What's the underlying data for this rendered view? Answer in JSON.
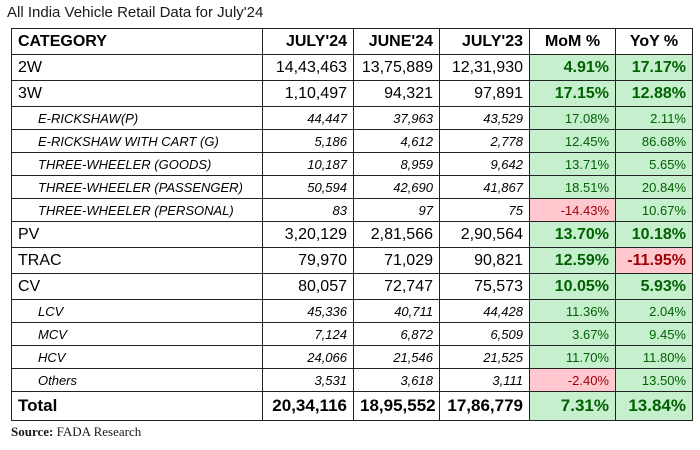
{
  "title": "All India Vehicle Retail Data for July'24",
  "headers": [
    "CATEGORY",
    "JULY'24",
    "JUNE'24",
    "JULY'23",
    "MoM %",
    "YoY %"
  ],
  "rows": [
    {
      "level": "main",
      "cat": "2W",
      "jul24": "14,43,463",
      "jun24": "13,75,889",
      "jul23": "12,31,930",
      "mom": "4.91%",
      "yoy": "17.17%",
      "mom_sign": "pos",
      "yoy_sign": "pos"
    },
    {
      "level": "main",
      "cat": "3W",
      "jul24": "1,10,497",
      "jun24": "94,321",
      "jul23": "97,891",
      "mom": "17.15%",
      "yoy": "12.88%",
      "mom_sign": "pos",
      "yoy_sign": "pos"
    },
    {
      "level": "sub",
      "cat": "E-RICKSHAW(P)",
      "jul24": "44,447",
      "jun24": "37,963",
      "jul23": "43,529",
      "mom": "17.08%",
      "yoy": "2.11%",
      "mom_sign": "pos",
      "yoy_sign": "pos"
    },
    {
      "level": "sub",
      "cat": "E-RICKSHAW WITH CART (G)",
      "jul24": "5,186",
      "jun24": "4,612",
      "jul23": "2,778",
      "mom": "12.45%",
      "yoy": "86.68%",
      "mom_sign": "pos",
      "yoy_sign": "pos"
    },
    {
      "level": "sub",
      "cat": "THREE-WHEELER (GOODS)",
      "jul24": "10,187",
      "jun24": "8,959",
      "jul23": "9,642",
      "mom": "13.71%",
      "yoy": "5.65%",
      "mom_sign": "pos",
      "yoy_sign": "pos"
    },
    {
      "level": "sub",
      "cat": "THREE-WHEELER (PASSENGER)",
      "jul24": "50,594",
      "jun24": "42,690",
      "jul23": "41,867",
      "mom": "18.51%",
      "yoy": "20.84%",
      "mom_sign": "pos",
      "yoy_sign": "pos"
    },
    {
      "level": "sub",
      "cat": "THREE-WHEELER (PERSONAL)",
      "jul24": "83",
      "jun24": "97",
      "jul23": "75",
      "mom": "-14.43%",
      "yoy": "10.67%",
      "mom_sign": "neg",
      "yoy_sign": "pos"
    },
    {
      "level": "main",
      "cat": "PV",
      "jul24": "3,20,129",
      "jun24": "2,81,566",
      "jul23": "2,90,564",
      "mom": "13.70%",
      "yoy": "10.18%",
      "mom_sign": "pos",
      "yoy_sign": "pos"
    },
    {
      "level": "main",
      "cat": "TRAC",
      "jul24": "79,970",
      "jun24": "71,029",
      "jul23": "90,821",
      "mom": "12.59%",
      "yoy": "-11.95%",
      "mom_sign": "pos",
      "yoy_sign": "neg"
    },
    {
      "level": "main",
      "cat": "CV",
      "jul24": "80,057",
      "jun24": "72,747",
      "jul23": "75,573",
      "mom": "10.05%",
      "yoy": "5.93%",
      "mom_sign": "pos",
      "yoy_sign": "pos"
    },
    {
      "level": "sub",
      "cat": "LCV",
      "jul24": "45,336",
      "jun24": "40,711",
      "jul23": "44,428",
      "mom": "11.36%",
      "yoy": "2.04%",
      "mom_sign": "pos",
      "yoy_sign": "pos"
    },
    {
      "level": "sub",
      "cat": "MCV",
      "jul24": "7,124",
      "jun24": "6,872",
      "jul23": "6,509",
      "mom": "3.67%",
      "yoy": "9.45%",
      "mom_sign": "pos",
      "yoy_sign": "pos"
    },
    {
      "level": "sub",
      "cat": "HCV",
      "jul24": "24,066",
      "jun24": "21,546",
      "jul23": "21,525",
      "mom": "11.70%",
      "yoy": "11.80%",
      "mom_sign": "pos",
      "yoy_sign": "pos"
    },
    {
      "level": "sub",
      "cat": "Others",
      "jul24": "3,531",
      "jun24": "3,618",
      "jul23": "3,111",
      "mom": "-2.40%",
      "yoy": "13.50%",
      "mom_sign": "neg",
      "yoy_sign": "pos"
    },
    {
      "level": "total",
      "cat": "Total",
      "jul24": "20,34,116",
      "jun24": "18,95,552",
      "jul23": "17,86,779",
      "mom": "7.31%",
      "yoy": "13.84%",
      "mom_sign": "pos",
      "yoy_sign": "pos"
    }
  ],
  "source": {
    "label": "Source:",
    "text": "FADA Research"
  },
  "colors": {
    "positive_bg": "#c6efce",
    "positive_text": "#006100",
    "negative_bg": "#ffc7ce",
    "negative_text": "#9c0006"
  }
}
